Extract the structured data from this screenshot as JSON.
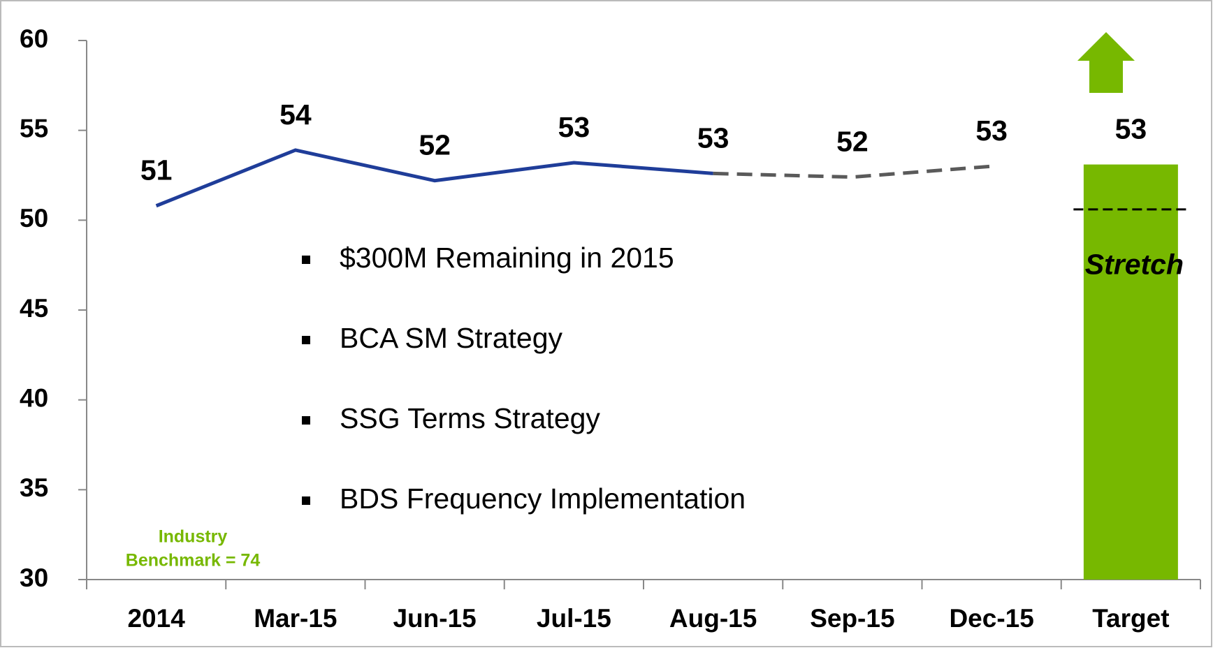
{
  "chart_data": {
    "type": "line",
    "categories": [
      "2014",
      "Mar-15",
      "Jun-15",
      "Jul-15",
      "Aug-15",
      "Sep-15",
      "Dec-15",
      "Target"
    ],
    "series": [
      {
        "name": "Actual",
        "type": "line",
        "color": "#1f3d99",
        "dashed": false,
        "values": [
          50.8,
          53.9,
          52.2,
          53.2,
          52.6,
          null,
          null,
          null
        ],
        "value_labels": [
          "51",
          "54",
          "52",
          "53",
          "53",
          null,
          null,
          null
        ]
      },
      {
        "name": "Forecast",
        "type": "line",
        "color": "#5a5a5a",
        "dashed": true,
        "values": [
          null,
          null,
          null,
          null,
          52.6,
          52.4,
          53.0,
          null
        ],
        "value_labels": [
          null,
          null,
          null,
          null,
          null,
          "52",
          "53",
          null
        ]
      },
      {
        "name": "Target",
        "type": "bar",
        "color": "#77b800",
        "values": [
          null,
          null,
          null,
          null,
          null,
          null,
          null,
          53.1
        ],
        "value_labels": [
          null,
          null,
          null,
          null,
          null,
          null,
          null,
          "53"
        ]
      }
    ],
    "stretch": {
      "label": "Stretch",
      "value": 50.6
    },
    "bullets": [
      "$300M Remaining  in 2015",
      "BCA SM Strategy",
      "SSG Terms Strategy",
      "BDS Frequency Implementation"
    ],
    "benchmark": [
      "Industry",
      "Benchmark  = 74"
    ],
    "ylim": [
      30,
      60
    ],
    "yticks": [
      30,
      35,
      40,
      45,
      50,
      55,
      60
    ]
  }
}
